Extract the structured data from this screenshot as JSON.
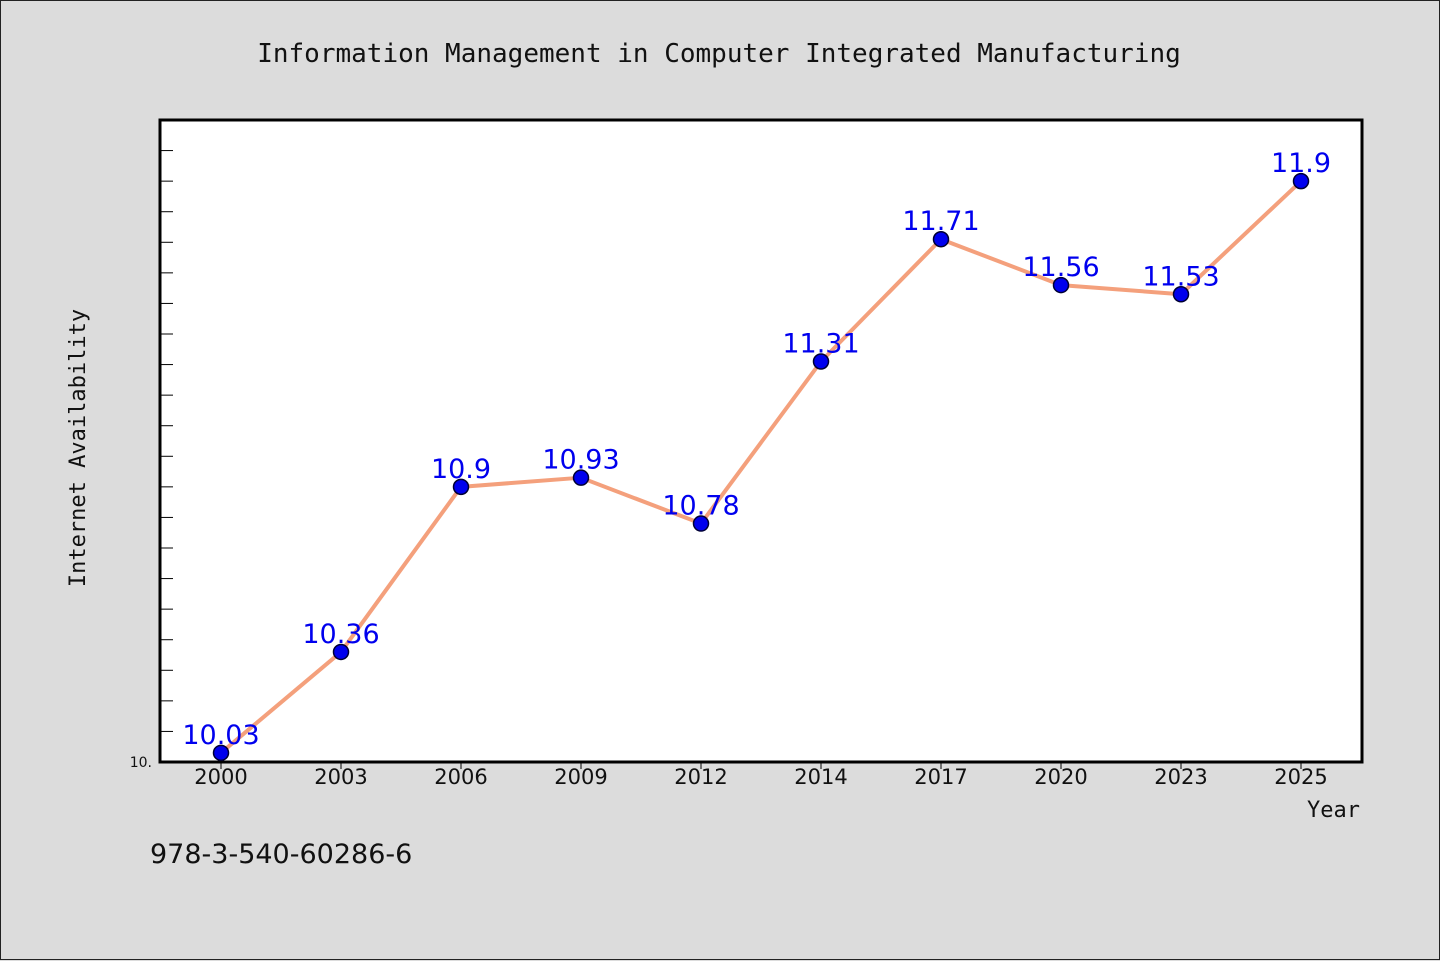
{
  "chart_data": {
    "type": "line",
    "title": "Information Management in Computer Integrated Manufacturing",
    "xlabel": "Year",
    "ylabel": "Internet Availability",
    "categories": [
      "2000",
      "2003",
      "2006",
      "2009",
      "2012",
      "2014",
      "2017",
      "2020",
      "2023",
      "2025"
    ],
    "series": [
      {
        "values": [
          10.03,
          10.36,
          10.9,
          10.93,
          10.78,
          11.31,
          11.71,
          11.56,
          11.53,
          11.9
        ]
      }
    ],
    "data_labels": [
      "10.03",
      "10.36",
      "10.9",
      "10.93",
      "10.78",
      "11.31",
      "11.71",
      "11.56",
      "11.53",
      "11.9"
    ],
    "ylim": [
      10.0,
      12.1
    ],
    "ytick_label": "10.",
    "grid": false,
    "line_color": "#f4a07c",
    "marker_color": "#0000ee",
    "label_color": "#0000ee"
  },
  "footer_text": "978-3-540-60286-6"
}
